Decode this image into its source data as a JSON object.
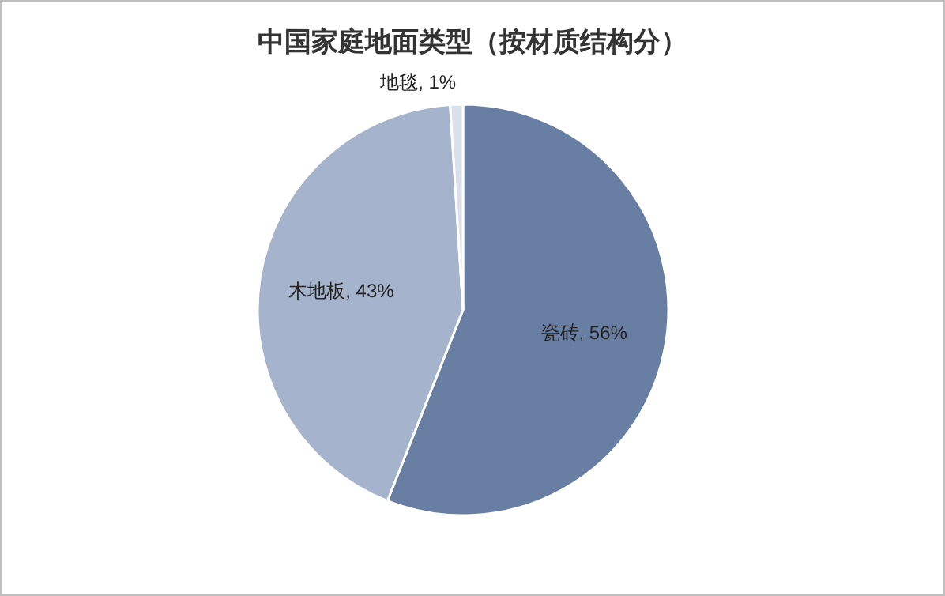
{
  "chart_data": {
    "type": "pie",
    "title": "中国家庭地面类型（按材质结构分）",
    "categories": [
      "瓷砖",
      "木地板",
      "地毯"
    ],
    "values": [
      56,
      43,
      1
    ],
    "colors": [
      "#687fa3",
      "#a6b3cc",
      "#d9e0ea"
    ],
    "value_labels": [
      ", 56%",
      ", 43%",
      ", 1%"
    ]
  }
}
